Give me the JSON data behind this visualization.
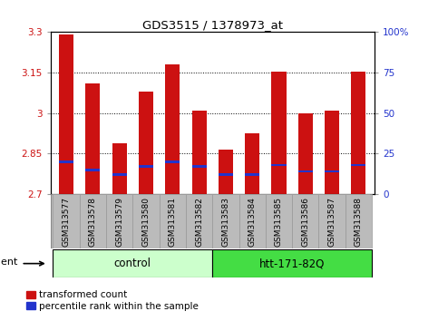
{
  "title": "GDS3515 / 1378973_at",
  "categories": [
    "GSM313577",
    "GSM313578",
    "GSM313579",
    "GSM313580",
    "GSM313581",
    "GSM313582",
    "GSM313583",
    "GSM313584",
    "GSM313585",
    "GSM313586",
    "GSM313587",
    "GSM313588"
  ],
  "transformed_count": [
    3.29,
    3.11,
    2.89,
    3.08,
    3.18,
    3.01,
    2.865,
    2.925,
    3.155,
    3.0,
    3.01,
    3.155
  ],
  "percentile_rank": [
    20,
    15,
    12,
    17,
    20,
    17,
    12,
    12,
    18,
    14,
    14,
    18
  ],
  "ymin": 2.7,
  "ymax": 3.3,
  "yticks": [
    2.7,
    2.85,
    3.0,
    3.15,
    3.3
  ],
  "ytick_labels": [
    "2.7",
    "2.85",
    "3",
    "3.15",
    "3.3"
  ],
  "right_yticks": [
    0,
    25,
    50,
    75,
    100
  ],
  "right_ytick_labels": [
    "0",
    "25",
    "50",
    "75",
    "100%"
  ],
  "bar_color": "#cc1111",
  "percentile_color": "#2233cc",
  "control_label": "control",
  "treatment_label": "htt-171-82Q",
  "control_bg": "#ccffcc",
  "treatment_bg": "#44dd44",
  "agent_label": "agent",
  "tick_area_bg": "#bbbbbb",
  "bar_width": 0.55
}
